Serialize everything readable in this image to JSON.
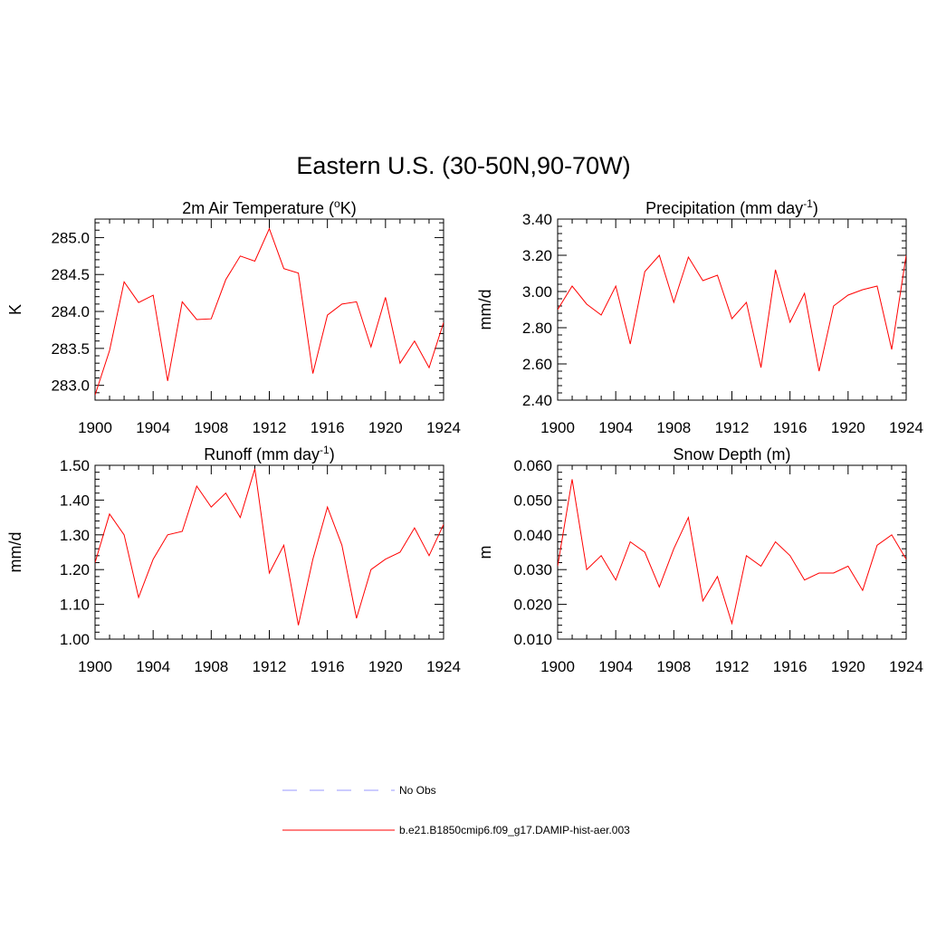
{
  "title": "Eastern U.S. (30-50N,90-70W)",
  "colors": {
    "model": "#ff0000",
    "obs": "#9999ff",
    "axis": "#000000"
  },
  "chart_data": [
    {
      "type": "line",
      "title": "2m Air Temperature (",
      "title_sup": "o",
      "title_after": "K)",
      "ylabel": "K",
      "xlim": [
        1900,
        1924
      ],
      "ylim": [
        282.8,
        285.25
      ],
      "x_ticks": [
        1900,
        1904,
        1908,
        1912,
        1916,
        1920,
        1924
      ],
      "x_tick_labels": [
        "1900",
        "1904",
        "1908",
        "1912",
        "1916",
        "1920",
        "1924"
      ],
      "y_ticks": [
        283.0,
        283.5,
        284.0,
        284.5,
        285.0
      ],
      "y_tick_labels": [
        "283.0",
        "283.5",
        "284.0",
        "284.5",
        "285.0"
      ],
      "series": [
        {
          "name": "b.e21.B1850cmip6.f09_g17.DAMIP-hist-aer.003",
          "x": [
            1900,
            1901,
            1902,
            1903,
            1904,
            1905,
            1906,
            1907,
            1908,
            1909,
            1910,
            1911,
            1912,
            1913,
            1914,
            1915,
            1916,
            1917,
            1918,
            1919,
            1920,
            1921,
            1922,
            1923,
            1924
          ],
          "y": [
            282.87,
            283.47,
            284.4,
            284.12,
            284.22,
            283.06,
            284.13,
            283.89,
            283.9,
            284.43,
            284.75,
            284.68,
            285.12,
            284.58,
            284.52,
            283.16,
            283.95,
            284.1,
            284.13,
            283.52,
            284.19,
            283.3,
            283.6,
            283.24,
            283.85
          ]
        }
      ]
    },
    {
      "type": "line",
      "title": "Precipitation (mm day",
      "title_sup": "-1",
      "title_after": ")",
      "ylabel": "mm/d",
      "xlim": [
        1900,
        1924
      ],
      "ylim": [
        2.4,
        3.4
      ],
      "x_ticks": [
        1900,
        1904,
        1908,
        1912,
        1916,
        1920,
        1924
      ],
      "x_tick_labels": [
        "1900",
        "1904",
        "1908",
        "1912",
        "1916",
        "1920",
        "1924"
      ],
      "y_ticks": [
        2.4,
        2.6,
        2.8,
        3.0,
        3.2,
        3.4
      ],
      "y_tick_labels": [
        "2.40",
        "2.60",
        "2.80",
        "3.00",
        "3.20",
        "3.40"
      ],
      "series": [
        {
          "name": "b.e21.B1850cmip6.f09_g17.DAMIP-hist-aer.003",
          "x": [
            1900,
            1901,
            1902,
            1903,
            1904,
            1905,
            1906,
            1907,
            1908,
            1909,
            1910,
            1911,
            1912,
            1913,
            1914,
            1915,
            1916,
            1917,
            1918,
            1919,
            1920,
            1921,
            1922,
            1923,
            1924
          ],
          "y": [
            2.9,
            3.03,
            2.93,
            2.87,
            3.03,
            2.71,
            3.11,
            3.2,
            2.94,
            3.19,
            3.06,
            3.09,
            2.85,
            2.94,
            2.58,
            3.12,
            2.83,
            2.99,
            2.56,
            2.92,
            2.98,
            3.01,
            3.03,
            2.68,
            3.2
          ]
        }
      ]
    },
    {
      "type": "line",
      "title": "Runoff (mm day",
      "title_sup": "-1",
      "title_after": ")",
      "ylabel": "mm/d",
      "xlim": [
        1900,
        1924
      ],
      "ylim": [
        1.0,
        1.5
      ],
      "x_ticks": [
        1900,
        1904,
        1908,
        1912,
        1916,
        1920,
        1924
      ],
      "x_tick_labels": [
        "1900",
        "1904",
        "1908",
        "1912",
        "1916",
        "1920",
        "1924"
      ],
      "y_ticks": [
        1.0,
        1.1,
        1.2,
        1.3,
        1.4,
        1.5
      ],
      "y_tick_labels": [
        "1.00",
        "1.10",
        "1.20",
        "1.30",
        "1.40",
        "1.50"
      ],
      "series": [
        {
          "name": "b.e21.B1850cmip6.f09_g17.DAMIP-hist-aer.003",
          "x": [
            1900,
            1901,
            1902,
            1903,
            1904,
            1905,
            1906,
            1907,
            1908,
            1909,
            1910,
            1911,
            1912,
            1913,
            1914,
            1915,
            1916,
            1917,
            1918,
            1919,
            1920,
            1921,
            1922,
            1923,
            1924
          ],
          "y": [
            1.22,
            1.36,
            1.3,
            1.12,
            1.23,
            1.3,
            1.31,
            1.44,
            1.38,
            1.42,
            1.35,
            1.49,
            1.19,
            1.27,
            1.04,
            1.23,
            1.38,
            1.27,
            1.06,
            1.2,
            1.23,
            1.25,
            1.32,
            1.24,
            1.33
          ]
        }
      ]
    },
    {
      "type": "line",
      "title": "Snow Depth (m)",
      "title_sup": "",
      "title_after": "",
      "ylabel": "m",
      "xlim": [
        1900,
        1924
      ],
      "ylim": [
        0.01,
        0.06
      ],
      "x_ticks": [
        1900,
        1904,
        1908,
        1912,
        1916,
        1920,
        1924
      ],
      "x_tick_labels": [
        "1900",
        "1904",
        "1908",
        "1912",
        "1916",
        "1920",
        "1924"
      ],
      "y_ticks": [
        0.01,
        0.02,
        0.03,
        0.04,
        0.05,
        0.06
      ],
      "y_tick_labels": [
        "0.010",
        "0.020",
        "0.030",
        "0.040",
        "0.050",
        "0.060"
      ],
      "series": [
        {
          "name": "b.e21.B1850cmip6.f09_g17.DAMIP-hist-aer.003",
          "x": [
            1900,
            1901,
            1902,
            1903,
            1904,
            1905,
            1906,
            1907,
            1908,
            1909,
            1910,
            1911,
            1912,
            1913,
            1914,
            1915,
            1916,
            1917,
            1918,
            1919,
            1920,
            1921,
            1922,
            1923,
            1924
          ],
          "y": [
            0.031,
            0.056,
            0.03,
            0.034,
            0.027,
            0.038,
            0.035,
            0.025,
            0.036,
            0.045,
            0.021,
            0.028,
            0.0145,
            0.034,
            0.031,
            0.038,
            0.034,
            0.027,
            0.029,
            0.029,
            0.031,
            0.024,
            0.037,
            0.04,
            0.033
          ]
        }
      ]
    }
  ],
  "legend": {
    "items": [
      {
        "label": "No Obs",
        "style": "dashed",
        "color": "#9999ff"
      },
      {
        "label": "b.e21.B1850cmip6.f09_g17.DAMIP-hist-aer.003",
        "style": "solid",
        "color": "#ff0000"
      }
    ]
  }
}
